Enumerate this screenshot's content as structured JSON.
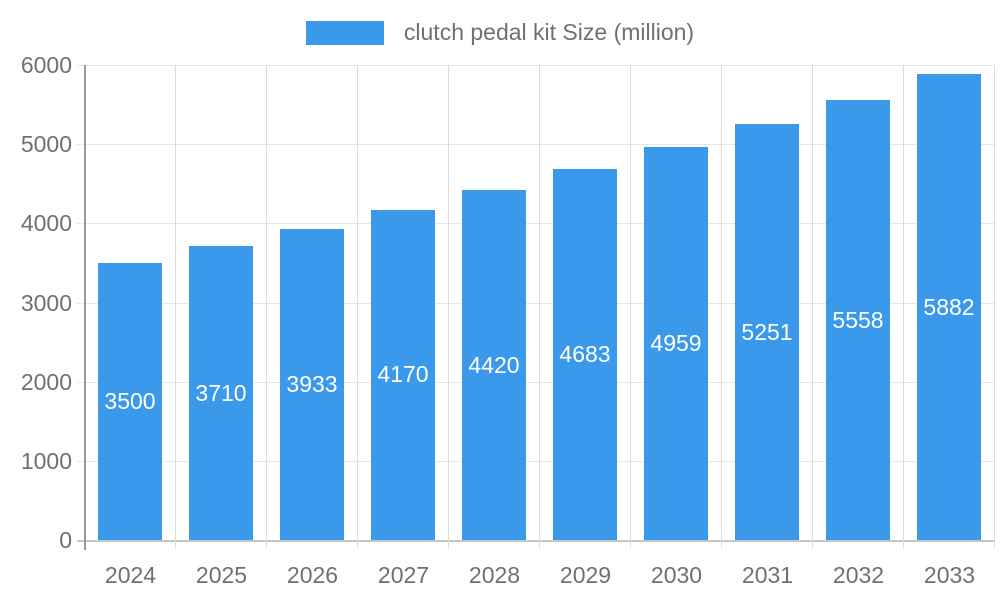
{
  "legend": {
    "label": "clutch pedal kit Size (million)"
  },
  "colors": {
    "bar": "#3b99ec",
    "bar_label": "#ffffff",
    "axis_text": "#707070",
    "grid_horizontal": "#e6e6e6",
    "grid_vertical": "#dcdcdc",
    "axis_line": "#999999",
    "baseline": "#c6c6c6",
    "background": "#ffffff"
  },
  "chart_data": {
    "type": "bar",
    "title": "clutch pedal kit Size (million)",
    "categories": [
      "2024",
      "2025",
      "2026",
      "2027",
      "2028",
      "2029",
      "2030",
      "2031",
      "2032",
      "2033"
    ],
    "values": [
      3500,
      3710,
      3933,
      4170,
      4420,
      4683,
      4959,
      5251,
      5558,
      5882
    ],
    "series": [
      {
        "name": "clutch pedal kit Size (million)",
        "values": [
          3500,
          3710,
          3933,
          4170,
          4420,
          4683,
          4959,
          5251,
          5558,
          5882
        ]
      }
    ],
    "xlabel": "",
    "ylabel": "",
    "ylim": [
      0,
      6000
    ],
    "y_ticks": [
      0,
      1000,
      2000,
      3000,
      4000,
      5000,
      6000
    ],
    "grid": true,
    "legend_position": "top-center",
    "bar_value_labels": "inside-center-white"
  }
}
